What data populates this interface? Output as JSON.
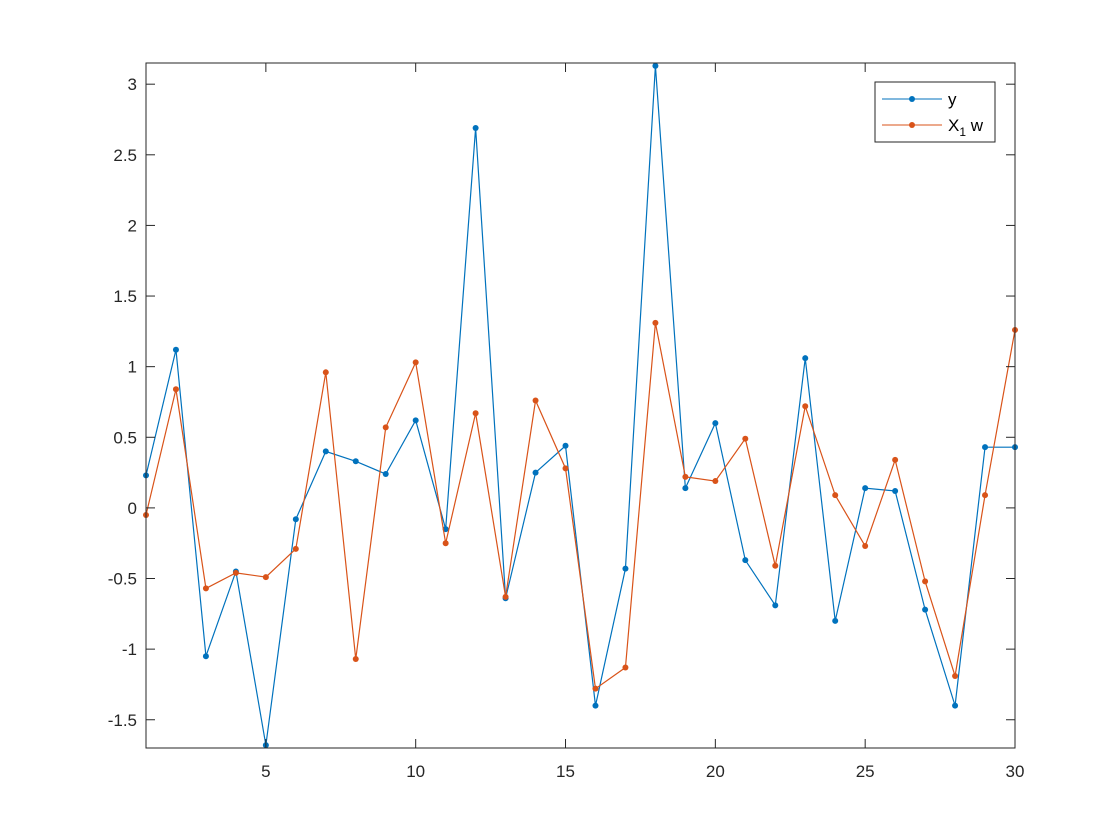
{
  "chart_data": {
    "type": "line",
    "title": "",
    "xlabel": "",
    "ylabel": "",
    "xlim": [
      1,
      30
    ],
    "ylim": [
      -1.7,
      3.15
    ],
    "xticks": [
      5,
      10,
      15,
      20,
      25,
      30
    ],
    "yticks": [
      -1.5,
      -1,
      -0.5,
      0,
      0.5,
      1,
      1.5,
      2,
      2.5,
      3
    ],
    "grid": false,
    "legend_position": "top-right",
    "x": [
      1,
      2,
      3,
      4,
      5,
      6,
      7,
      8,
      9,
      10,
      11,
      12,
      13,
      14,
      15,
      16,
      17,
      18,
      19,
      20,
      21,
      22,
      23,
      24,
      25,
      26,
      27,
      28,
      29,
      30
    ],
    "series": [
      {
        "name": "y",
        "color": "#0072BD",
        "marker": "dot",
        "values": [
          0.23,
          1.12,
          -1.05,
          -0.45,
          -1.68,
          -0.08,
          0.4,
          0.33,
          0.24,
          0.62,
          -0.15,
          2.69,
          -0.64,
          0.25,
          0.44,
          -1.4,
          -0.43,
          3.13,
          0.14,
          0.6,
          -0.37,
          -0.69,
          1.06,
          -0.8,
          0.14,
          0.12,
          -0.72,
          -1.4,
          0.43,
          0.43
        ]
      },
      {
        "name": "X",
        "name_subscript": "1",
        "name_suffix": " w",
        "color": "#D95319",
        "marker": "dot",
        "values": [
          -0.05,
          0.84,
          -0.57,
          -0.46,
          -0.49,
          -0.29,
          0.96,
          -1.07,
          0.57,
          1.03,
          -0.25,
          0.67,
          -0.63,
          0.76,
          0.28,
          -1.28,
          -1.13,
          1.31,
          0.22,
          0.19,
          0.49,
          -0.41,
          0.72,
          0.09,
          -0.27,
          0.34,
          -0.52,
          -1.19,
          0.09,
          1.26
        ]
      }
    ]
  }
}
